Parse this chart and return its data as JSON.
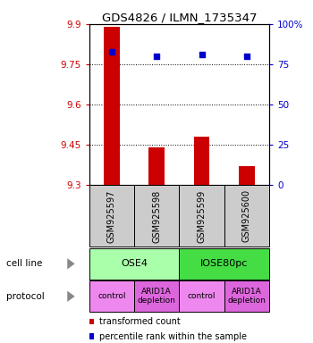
{
  "title": "GDS4826 / ILMN_1735347",
  "samples": [
    "GSM925597",
    "GSM925598",
    "GSM925599",
    "GSM925600"
  ],
  "bar_values": [
    9.89,
    9.44,
    9.48,
    9.37
  ],
  "blue_values": [
    83,
    80,
    81,
    80
  ],
  "ymin": 9.3,
  "ymax": 9.9,
  "y_ticks": [
    9.3,
    9.45,
    9.6,
    9.75,
    9.9
  ],
  "y_tick_labels": [
    "9.3",
    "9.45",
    "9.6",
    "9.75",
    "9.9"
  ],
  "right_yticks": [
    0,
    25,
    50,
    75,
    100
  ],
  "right_ytick_labels": [
    "0",
    "25",
    "50",
    "75",
    "100%"
  ],
  "bar_color": "#cc0000",
  "blue_color": "#0000cc",
  "cell_line_groups": [
    {
      "label": "OSE4",
      "start": 0,
      "end": 2,
      "color": "#aaffaa"
    },
    {
      "label": "IOSE80pc",
      "start": 2,
      "end": 4,
      "color": "#44dd44"
    }
  ],
  "protocol_groups": [
    {
      "label": "control",
      "start": 0,
      "end": 1,
      "color": "#ee88ee"
    },
    {
      "label": "ARID1A\ndepletion",
      "start": 1,
      "end": 2,
      "color": "#dd66dd"
    },
    {
      "label": "control",
      "start": 2,
      "end": 3,
      "color": "#ee88ee"
    },
    {
      "label": "ARID1A\ndepletion",
      "start": 3,
      "end": 4,
      "color": "#dd66dd"
    }
  ],
  "legend_red_label": "transformed count",
  "legend_blue_label": "percentile rank within the sample",
  "cell_line_label": "cell line",
  "protocol_label": "protocol",
  "sample_box_color": "#cccccc",
  "bg_color": "#ffffff"
}
